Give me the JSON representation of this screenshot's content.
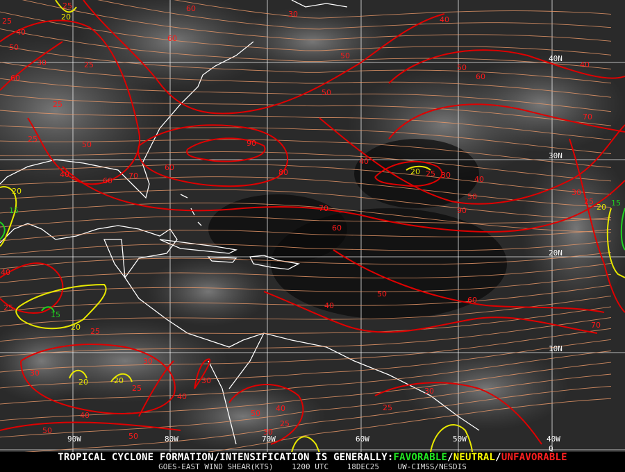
{
  "map": {
    "product": "GOES-EAST WIND SHEAR(KTS)",
    "colors": {
      "unfavorable": "#e00000",
      "neutral": "#e8e800",
      "favorable": "#20d020",
      "streamline": "#e89868",
      "coast": "#ffffff",
      "grid": "#ffffff"
    },
    "lon_labels": [
      "90W",
      "80W",
      "70W",
      "60W",
      "50W",
      "40W"
    ],
    "lat_labels": [
      "40N",
      "30N",
      "20N",
      "10N",
      "0"
    ],
    "contour_labels": [
      {
        "v": "25",
        "c": "red"
      },
      {
        "v": "60",
        "c": "red"
      },
      {
        "v": "30",
        "c": "red"
      },
      {
        "v": "40",
        "c": "red"
      },
      {
        "v": "25",
        "c": "red"
      },
      {
        "v": "40",
        "c": "red"
      },
      {
        "v": "60",
        "c": "red"
      },
      {
        "v": "50",
        "c": "red"
      },
      {
        "v": "30",
        "c": "red"
      },
      {
        "v": "50",
        "c": "red"
      },
      {
        "v": "25",
        "c": "red"
      },
      {
        "v": "40",
        "c": "red"
      },
      {
        "v": "50",
        "c": "red"
      },
      {
        "v": "60",
        "c": "red"
      },
      {
        "v": "60",
        "c": "red"
      },
      {
        "v": "50",
        "c": "red"
      },
      {
        "v": "25",
        "c": "red"
      },
      {
        "v": "70",
        "c": "red"
      },
      {
        "v": "25",
        "c": "red"
      },
      {
        "v": "50",
        "c": "red"
      },
      {
        "v": "90",
        "c": "red"
      },
      {
        "v": "40",
        "c": "red"
      },
      {
        "v": "60",
        "c": "red"
      },
      {
        "v": "40",
        "c": "red"
      },
      {
        "v": "60",
        "c": "red"
      },
      {
        "v": "70",
        "c": "red"
      },
      {
        "v": "80",
        "c": "red"
      },
      {
        "v": "25",
        "c": "red"
      },
      {
        "v": "30",
        "c": "red"
      },
      {
        "v": "40",
        "c": "red"
      },
      {
        "v": "50",
        "c": "red"
      },
      {
        "v": "30",
        "c": "red"
      },
      {
        "v": "25",
        "c": "red"
      },
      {
        "v": "70",
        "c": "red"
      },
      {
        "v": "90",
        "c": "red"
      },
      {
        "v": "60",
        "c": "red"
      },
      {
        "v": "40",
        "c": "red"
      },
      {
        "v": "50",
        "c": "red"
      },
      {
        "v": "25",
        "c": "red"
      },
      {
        "v": "40",
        "c": "red"
      },
      {
        "v": "60",
        "c": "red"
      },
      {
        "v": "70",
        "c": "red"
      },
      {
        "v": "25",
        "c": "red"
      },
      {
        "v": "30",
        "c": "red"
      },
      {
        "v": "30",
        "c": "red"
      },
      {
        "v": "30",
        "c": "red"
      },
      {
        "v": "25",
        "c": "red"
      },
      {
        "v": "40",
        "c": "red"
      },
      {
        "v": "30",
        "c": "red"
      },
      {
        "v": "40",
        "c": "red"
      },
      {
        "v": "40",
        "c": "red"
      },
      {
        "v": "50",
        "c": "red"
      },
      {
        "v": "25",
        "c": "red"
      },
      {
        "v": "50",
        "c": "red"
      },
      {
        "v": "50",
        "c": "red"
      },
      {
        "v": "30",
        "c": "red"
      },
      {
        "v": "25",
        "c": "red"
      },
      {
        "v": "20",
        "c": "yellow"
      },
      {
        "v": "20",
        "c": "yellow"
      },
      {
        "v": "20",
        "c": "yellow"
      },
      {
        "v": "20",
        "c": "yellow"
      },
      {
        "v": "20",
        "c": "yellow"
      },
      {
        "v": "20",
        "c": "yellow"
      },
      {
        "v": "20",
        "c": "yellow"
      },
      {
        "v": "15",
        "c": "green"
      },
      {
        "v": "15",
        "c": "green"
      },
      {
        "v": "15",
        "c": "green"
      }
    ]
  },
  "footer": {
    "headline_prefix": "TROPICAL CYCLONE FORMATION/INTENSIFICATION IS GENERALLY:",
    "favorable": "FAVORABLE",
    "sep1": "/",
    "neutral": "NEUTRAL",
    "sep2": "/",
    "unfavorable": "UNFAVORABLE",
    "product": "GOES-EAST WIND SHEAR(KTS)",
    "time": "1200 UTC",
    "date": "18DEC25",
    "source": "UW-CIMSS/NESDIS"
  }
}
